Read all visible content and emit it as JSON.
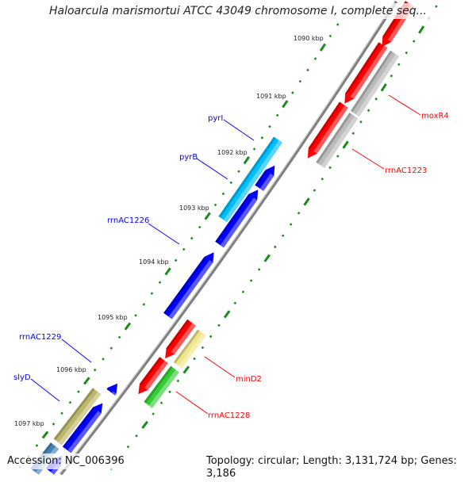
{
  "title": "Haloarcula marismortui ATCC 43049 chromosome I, complete seq...",
  "footer": {
    "accession": "Accession: NC_006396",
    "topology": "Topology: circular; Length: 3,131,724 bp; Genes: 3,186"
  },
  "ticks": [
    "1090 kbp",
    "1091 kbp",
    "1092 kbp",
    "1093 kbp",
    "1094 kbp",
    "1095 kbp",
    "1096 kbp",
    "1097 kbp"
  ],
  "colors": {
    "backbone": "#808080",
    "ruler": "#1a8a1a",
    "forward_label": "#0000ff",
    "reverse_label": "#ff0000"
  },
  "labels": {
    "pyrI": "pyrI",
    "pyrB": "pyrB",
    "rrnAC1226": "rrnAC1226",
    "rrnAC1229": "rrnAC1229",
    "slyD": "slyD",
    "moxR4": "moxR4",
    "rrnAC1223": "rrnAC1223",
    "minD2": "minD2",
    "rrnAC1228": "rrnAC1228"
  },
  "features": [
    {
      "track": "reverse-inner",
      "start": 1088.6,
      "end": 1089.52,
      "color": "#ff0000",
      "arrow": "end"
    },
    {
      "track": "reverse-inner",
      "start": 1089.49,
      "end": 1090.51,
      "color": "#ff0000",
      "arrow": "end"
    },
    {
      "track": "reverse-inner",
      "start": 1090.53,
      "end": 1091.47,
      "color": "#ff0000",
      "arrow": "end"
    },
    {
      "track": "reverse-outer",
      "start": 1089.5,
      "end": 1090.55,
      "color": "#bbbbbb",
      "arrow": "none"
    },
    {
      "track": "reverse-outer",
      "start": 1090.58,
      "end": 1091.45,
      "color": "#bbbbbb",
      "arrow": "none"
    },
    {
      "track": "reverse-inner",
      "start": 1094.4,
      "end": 1095.05,
      "color": "#ff0000",
      "arrow": "end"
    },
    {
      "track": "reverse-inner",
      "start": 1095.08,
      "end": 1095.7,
      "color": "#ff0000",
      "arrow": "end"
    },
    {
      "track": "reverse-outer",
      "start": 1094.43,
      "end": 1095.02,
      "color": "#f0e68c",
      "arrow": "none"
    },
    {
      "track": "reverse-outer",
      "start": 1095.09,
      "end": 1095.74,
      "color": "#33cc33",
      "arrow": "none"
    },
    {
      "track": "forward-outer",
      "start": 1091.49,
      "end": 1092.91,
      "color": "#00bfff",
      "arrow": "none"
    },
    {
      "track": "forward-inner",
      "start": 1091.83,
      "end": 1092.23,
      "color": "#0000ff",
      "arrow": "start"
    },
    {
      "track": "forward-inner",
      "start": 1092.26,
      "end": 1093.24,
      "color": "#0000ff",
      "arrow": "start"
    },
    {
      "track": "forward-inner",
      "start": 1093.38,
      "end": 1094.53,
      "color": "#0000ff",
      "arrow": "start"
    },
    {
      "track": "forward-inner",
      "start": 1095.76,
      "end": 1095.92,
      "color": "#0000ff",
      "arrow": "start"
    },
    {
      "track": "forward-inner",
      "start": 1096.12,
      "end": 1096.98,
      "color": "#0000ff",
      "arrow": "start"
    },
    {
      "track": "forward-inner",
      "start": 1097.09,
      "end": 1097.9,
      "color": "#0000ff",
      "arrow": "start"
    },
    {
      "track": "forward-outer",
      "start": 1096.03,
      "end": 1096.97,
      "color": "#bdb76b",
      "arrow": "none"
    },
    {
      "track": "forward-outer",
      "start": 1097.04,
      "end": 1097.9,
      "color": "#4682b4",
      "arrow": "none"
    }
  ]
}
